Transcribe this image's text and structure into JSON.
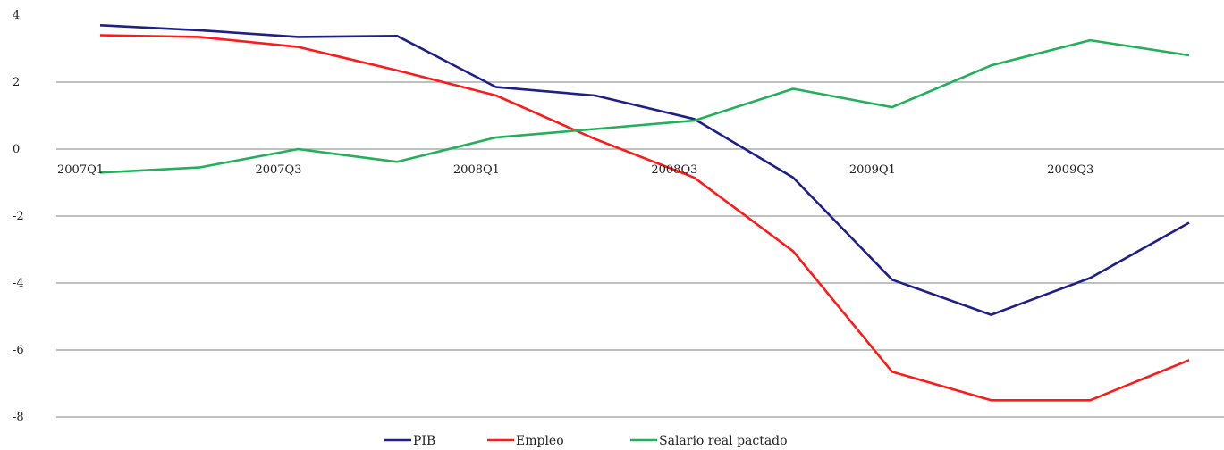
{
  "chart_data": {
    "type": "line",
    "title": "",
    "xlabel": "",
    "ylabel": "",
    "ylim": [
      -8,
      4
    ],
    "y_ticks": [
      4,
      2,
      0,
      -2,
      -4,
      -6,
      -8
    ],
    "y_tick_labels": [
      "4",
      "2",
      "0",
      "-2",
      "-4",
      "-6",
      "-8"
    ],
    "gridlines": true,
    "legend_position": "bottom",
    "categories": [
      "2007Q1",
      "2007Q2",
      "2007Q3",
      "2007Q4",
      "2008Q1",
      "2008Q2",
      "2008Q3",
      "2008Q4",
      "2009Q1",
      "2009Q2",
      "2009Q3",
      "2009Q4"
    ],
    "x_tick_labels": [
      "2007Q1",
      "2007Q3",
      "2008Q1",
      "2008Q3",
      "2009Q1",
      "2009Q3"
    ],
    "series": [
      {
        "name": "PIB",
        "color": "#1f1f8a",
        "values": [
          3.7,
          3.55,
          3.35,
          3.38,
          1.85,
          1.6,
          0.9,
          -0.85,
          -3.9,
          -4.95,
          -3.85,
          -2.2
        ]
      },
      {
        "name": "Empleo",
        "color": "#ff1a1a",
        "values": [
          3.4,
          3.35,
          3.05,
          2.35,
          1.6,
          0.3,
          -0.85,
          -3.05,
          -6.65,
          -7.5,
          -7.5,
          -6.3
        ]
      },
      {
        "name": "Salario real pactado",
        "color": "#22b05a",
        "values": [
          -0.7,
          -0.55,
          0.0,
          -0.38,
          0.35,
          0.6,
          0.85,
          1.8,
          1.25,
          2.5,
          3.25,
          2.8
        ]
      }
    ]
  }
}
